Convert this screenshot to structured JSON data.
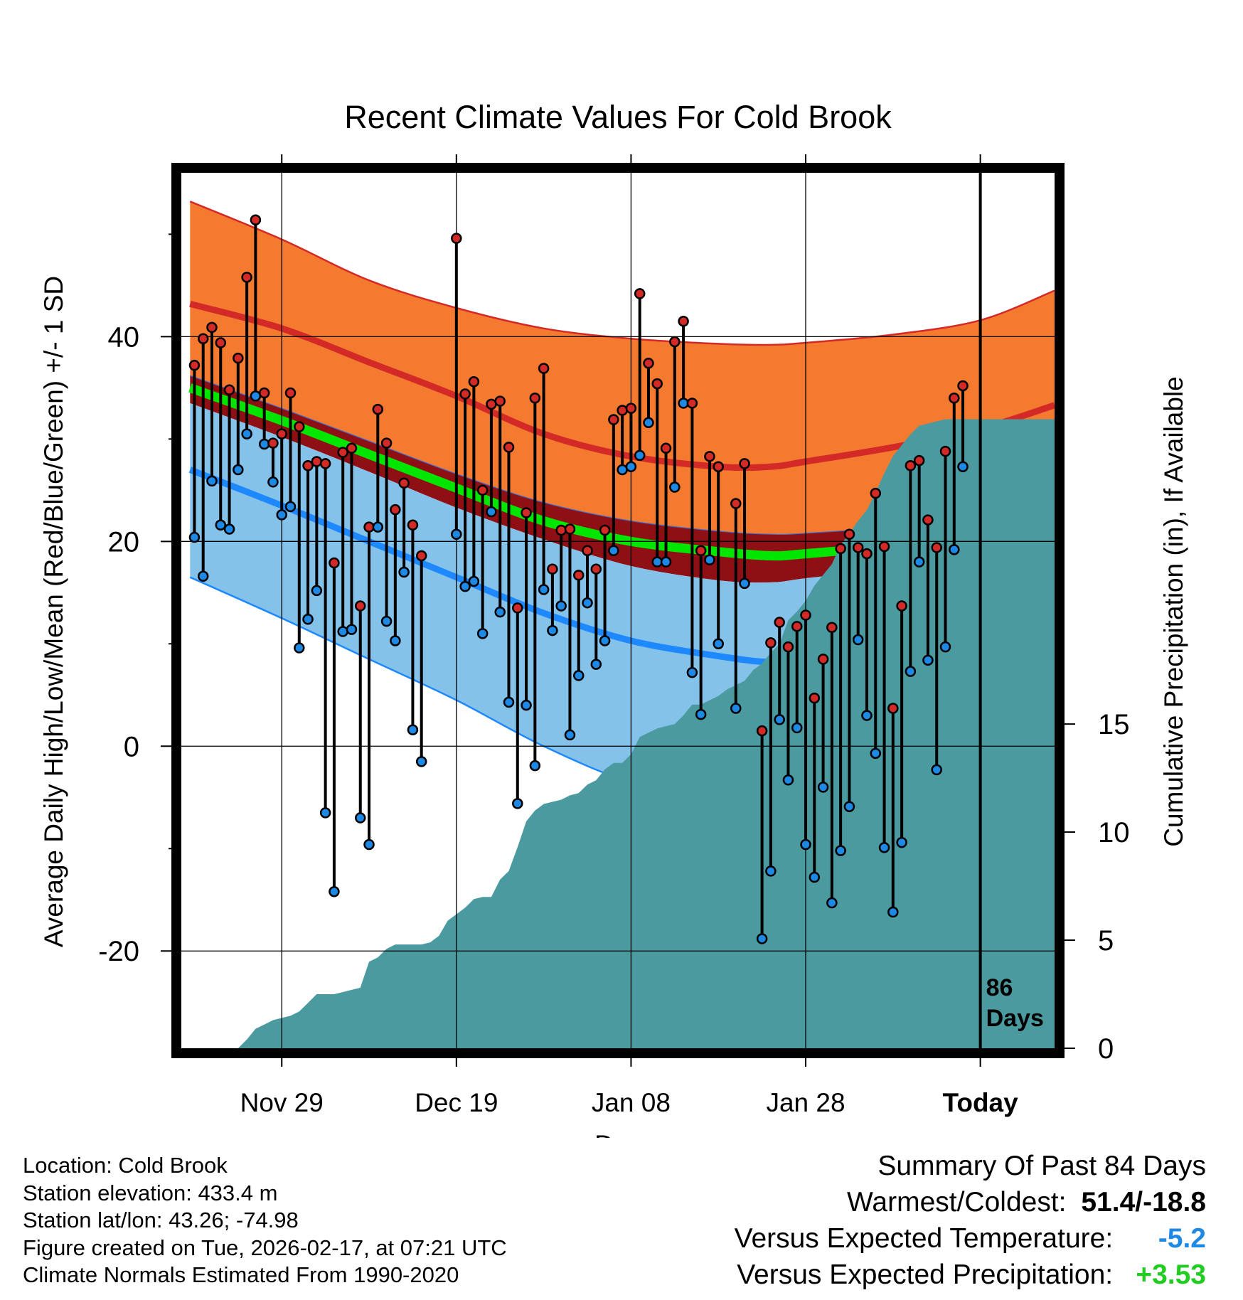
{
  "chart_data": {
    "type": "line",
    "title": "Recent Climate Values For Cold Brook",
    "xlabel": "Day",
    "ylabel_left": "Average Daily High/Low/Mean (Red/Blue/Green) +/- 1 SD",
    "ylabel_right": "Cumulative Precipitation (in), If Available",
    "ylim": [
      -29.5,
      56
    ],
    "precip_ylim": [
      0,
      40.5
    ],
    "xlim": [
      -11.5,
      88.5
    ],
    "x_ticks": [
      {
        "x": 0,
        "label": "Nov 29"
      },
      {
        "x": 20,
        "label": "Dec 19"
      },
      {
        "x": 40,
        "label": "Jan 08"
      },
      {
        "x": 60,
        "label": "Jan 28"
      },
      {
        "x": 80,
        "label": "Today"
      }
    ],
    "y_ticks": [
      -20,
      0,
      20,
      40
    ],
    "y_minor_ticks": [
      -10,
      10,
      30,
      50
    ],
    "precip_ticks": [
      0,
      5,
      10,
      15
    ],
    "grid": true,
    "today_x": 80,
    "today_label_line1": "86",
    "today_label_line2": "Days",
    "normals_x": [
      -10.5,
      0,
      10,
      20,
      30,
      40,
      50,
      56,
      60,
      70,
      80,
      88.5
    ],
    "normal_high": [
      43.2,
      40.8,
      37.5,
      34.2,
      30.5,
      28.3,
      27.3,
      27.3,
      27.8,
      29.2,
      31.0,
      33.3
    ],
    "normal_high_sd_upper": [
      53.2,
      49.5,
      45.5,
      42.8,
      40.8,
      39.8,
      39.3,
      39.2,
      39.4,
      40.2,
      41.6,
      44.5
    ],
    "normal_mean": [
      35.0,
      31.8,
      28.5,
      25.2,
      22.0,
      20.0,
      19.0,
      18.6,
      18.8,
      19.6,
      21.0,
      23.0
    ],
    "mean_band_upper": [
      36.2,
      33.0,
      29.8,
      26.6,
      23.8,
      22.0,
      21.0,
      20.7,
      20.8,
      21.5,
      23.2,
      26.0
    ],
    "mean_band_lower": [
      33.5,
      30.2,
      26.8,
      23.3,
      20.2,
      17.6,
      16.2,
      16.0,
      16.4,
      17.4,
      19.0,
      21.5
    ],
    "normal_low": [
      27.0,
      23.5,
      20.0,
      16.5,
      13.0,
      10.3,
      8.8,
      8.2,
      8.5,
      9.8,
      11.5,
      13.5
    ],
    "normal_low_sd_lower": [
      16.5,
      12.5,
      8.5,
      4.5,
      0.0,
      -3.5,
      -5.0,
      -5.0,
      -4.8,
      -3.0,
      -1.5,
      0.5
    ],
    "days_x": [
      -10,
      -9,
      -8,
      -7,
      -6,
      -5,
      -4,
      -3,
      -2,
      -1,
      0,
      1,
      2,
      3,
      4,
      5,
      6,
      7,
      8,
      9,
      10,
      11,
      12,
      13,
      14,
      15,
      16,
      17,
      18,
      19,
      20,
      21,
      22,
      23,
      24,
      25,
      26,
      27,
      28,
      29,
      30,
      31,
      32,
      33,
      34,
      35,
      36,
      37,
      38,
      39,
      40,
      41,
      42,
      43,
      44,
      45,
      46,
      47,
      48,
      49,
      50,
      51,
      52,
      53,
      54,
      55,
      56,
      57,
      58,
      59,
      60,
      61,
      62,
      63,
      64,
      65,
      66,
      67,
      68,
      69,
      70,
      71,
      72,
      73,
      74,
      75,
      76,
      77,
      78,
      79
    ],
    "daily_high": [
      37.2,
      39.8,
      40.9,
      39.4,
      34.8,
      37.9,
      45.8,
      51.4,
      34.5,
      29.6,
      30.5,
      34.5,
      31.2,
      27.4,
      27.8,
      27.6,
      17.9,
      28.7,
      29.1,
      13.7,
      21.4,
      32.9,
      29.6,
      23.1,
      25.7,
      21.6,
      18.6,
      null,
      null,
      null,
      49.6,
      34.4,
      35.6,
      25.0,
      33.4,
      33.7,
      29.2,
      13.5,
      22.8,
      34.0,
      36.9,
      17.3,
      21.1,
      21.2,
      16.7,
      19.1,
      17.3,
      21.1,
      31.9,
      32.8,
      33.0,
      44.2,
      37.4,
      35.4,
      29.1,
      39.5,
      41.5,
      33.5,
      19.1,
      28.3,
      27.3,
      null,
      23.7,
      27.6,
      null,
      1.5,
      10.1,
      12.1,
      9.7,
      11.7,
      12.8,
      4.7,
      8.5,
      11.6,
      19.3,
      20.7,
      19.4,
      18.8,
      24.7,
      19.5,
      3.7,
      13.7,
      27.4,
      27.9,
      22.1,
      19.4,
      28.8,
      34.0,
      35.2,
      null
    ],
    "daily_low": [
      20.4,
      16.6,
      25.9,
      21.6,
      21.2,
      27.0,
      30.5,
      34.2,
      29.5,
      25.8,
      22.6,
      23.4,
      9.6,
      12.4,
      15.2,
      -6.5,
      -14.2,
      11.2,
      11.4,
      -7.0,
      -9.6,
      21.4,
      12.2,
      10.3,
      17.0,
      1.6,
      -1.5,
      null,
      null,
      null,
      20.7,
      15.6,
      16.1,
      11.0,
      22.9,
      13.1,
      4.3,
      -5.6,
      4.0,
      -1.9,
      15.3,
      11.3,
      13.7,
      1.1,
      6.9,
      14.0,
      8.0,
      10.3,
      19.1,
      27.0,
      27.3,
      28.4,
      31.6,
      18.0,
      18.0,
      25.3,
      33.5,
      7.2,
      3.1,
      18.2,
      10.0,
      null,
      3.7,
      15.9,
      null,
      -18.8,
      -12.2,
      2.6,
      -3.3,
      1.8,
      -9.6,
      -12.8,
      -4.0,
      -15.3,
      -10.2,
      -5.9,
      10.4,
      3.0,
      -0.7,
      -9.9,
      -16.2,
      -9.4,
      7.3,
      18.0,
      8.4,
      -2.3,
      9.7,
      19.2,
      27.3,
      null
    ],
    "precip_x": [
      -10.5,
      -5,
      -4,
      -3,
      -2,
      -1,
      0,
      1,
      2,
      3,
      4,
      5,
      6,
      7,
      8,
      9,
      10,
      11,
      12,
      13,
      14,
      15,
      16,
      17,
      18,
      19,
      20,
      21,
      22,
      23,
      24,
      25,
      26,
      27,
      28,
      29,
      30,
      31,
      32,
      33,
      34,
      35,
      36,
      37,
      38,
      39,
      40,
      41,
      42,
      43,
      44,
      45,
      46,
      47,
      48,
      49,
      50,
      51,
      52,
      53,
      54,
      55,
      56,
      57,
      58,
      59,
      60,
      61,
      62,
      63,
      64,
      65,
      66,
      67,
      68,
      69,
      70,
      71,
      72,
      73,
      74,
      75,
      76,
      77,
      78,
      79,
      80,
      88.5
    ],
    "precip_values": [
      0,
      0,
      0.4,
      0.9,
      1.1,
      1.3,
      1.4,
      1.5,
      1.7,
      2.1,
      2.5,
      2.5,
      2.5,
      2.6,
      2.7,
      2.8,
      4.0,
      4.2,
      4.6,
      4.8,
      4.8,
      4.8,
      4.8,
      4.9,
      5.2,
      5.9,
      6.2,
      6.5,
      6.9,
      7.0,
      7.0,
      7.8,
      8.2,
      9.3,
      10.5,
      11.0,
      11.3,
      11.4,
      11.5,
      11.7,
      11.8,
      12.2,
      12.4,
      12.9,
      13.2,
      13.2,
      13.6,
      14.4,
      14.6,
      14.8,
      14.9,
      15.0,
      15.4,
      15.9,
      15.9,
      16.1,
      16.3,
      16.6,
      16.8,
      17.0,
      17.5,
      17.8,
      18.3,
      18.7,
      19.8,
      20.2,
      20.7,
      21.4,
      21.9,
      22.4,
      23.3,
      23.8,
      24.4,
      24.9,
      25.7,
      26.6,
      27.4,
      27.9,
      28.4,
      28.8,
      28.9,
      29.0,
      29.1,
      29.1,
      29.1,
      29.1,
      29.1,
      29.1
    ]
  },
  "info": {
    "location": "Location: Cold Brook",
    "elevation": "Station elevation: 433.4 m",
    "latlon": "Station lat/lon: 43.26; -74.98",
    "created": "Figure created on Tue, 2026-02-17, at 07:21 UTC",
    "normals": "Climate Normals Estimated From 1990-2020"
  },
  "summary": {
    "title": "Summary Of Past 84 Days",
    "warm_cold_label": "Warmest/Coldest:",
    "warm_cold_value": "51.4/-18.8",
    "temp_label": "Versus Expected Temperature:",
    "temp_value": "-5.2",
    "temp_color": "#1e88e5",
    "precip_label": "Versus Expected Precipitation:",
    "precip_value": "+3.53",
    "precip_color": "#22cc22"
  },
  "colors": {
    "high_band": "#f47a30",
    "high_line": "#d42a27",
    "mean_band_dark": "#8f1014",
    "mean_line": "#00e600",
    "low_band": "#85c2ea",
    "low_line": "#1e88ff",
    "precip_fill": "#4a9aa0",
    "high_marker": "#d42a27",
    "low_marker": "#1e88e5"
  }
}
